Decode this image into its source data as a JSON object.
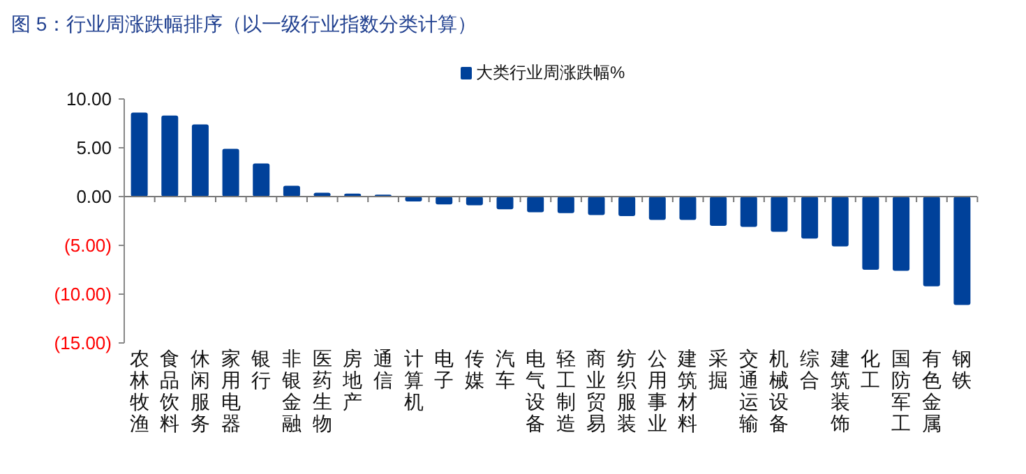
{
  "chart_data": {
    "type": "bar",
    "title": "图 5：行业周涨跌幅排序（以一级行业指数分类计算）",
    "categories": [
      "农林牧渔",
      "食品饮料",
      "休闲服务",
      "家用电器",
      "银行",
      "非银金融",
      "医药生物",
      "房地产",
      "通信",
      "计算机",
      "电子",
      "传媒",
      "汽车",
      "电气设备",
      "轻工制造",
      "商业贸易",
      "纺织服装",
      "公用事业",
      "建筑材料",
      "采掘",
      "交通运输",
      "机械设备",
      "综合",
      "建筑装饰",
      "化工",
      "国防军工",
      "有色金属",
      "钢铁"
    ],
    "series": [
      {
        "name": "大类行业周涨跌幅%",
        "color": "#00419a",
        "values": [
          8.6,
          8.3,
          7.4,
          4.9,
          3.4,
          1.1,
          0.4,
          0.3,
          0.2,
          -0.5,
          -0.8,
          -0.9,
          -1.3,
          -1.6,
          -1.7,
          -1.9,
          -2.0,
          -2.4,
          -2.4,
          -3.0,
          -3.1,
          -3.6,
          -4.3,
          -5.1,
          -7.5,
          -7.6,
          -9.2,
          -11.1
        ]
      }
    ],
    "ylim": [
      -15,
      10
    ],
    "yticks": [
      {
        "value": -15,
        "label": "(15.00)"
      },
      {
        "value": -10,
        "label": "(10.00)"
      },
      {
        "value": -5,
        "label": "(5.00)"
      },
      {
        "value": 0,
        "label": "0.00"
      },
      {
        "value": 5,
        "label": "5.00"
      },
      {
        "value": 10,
        "label": "10.00"
      }
    ],
    "legend": "top"
  }
}
